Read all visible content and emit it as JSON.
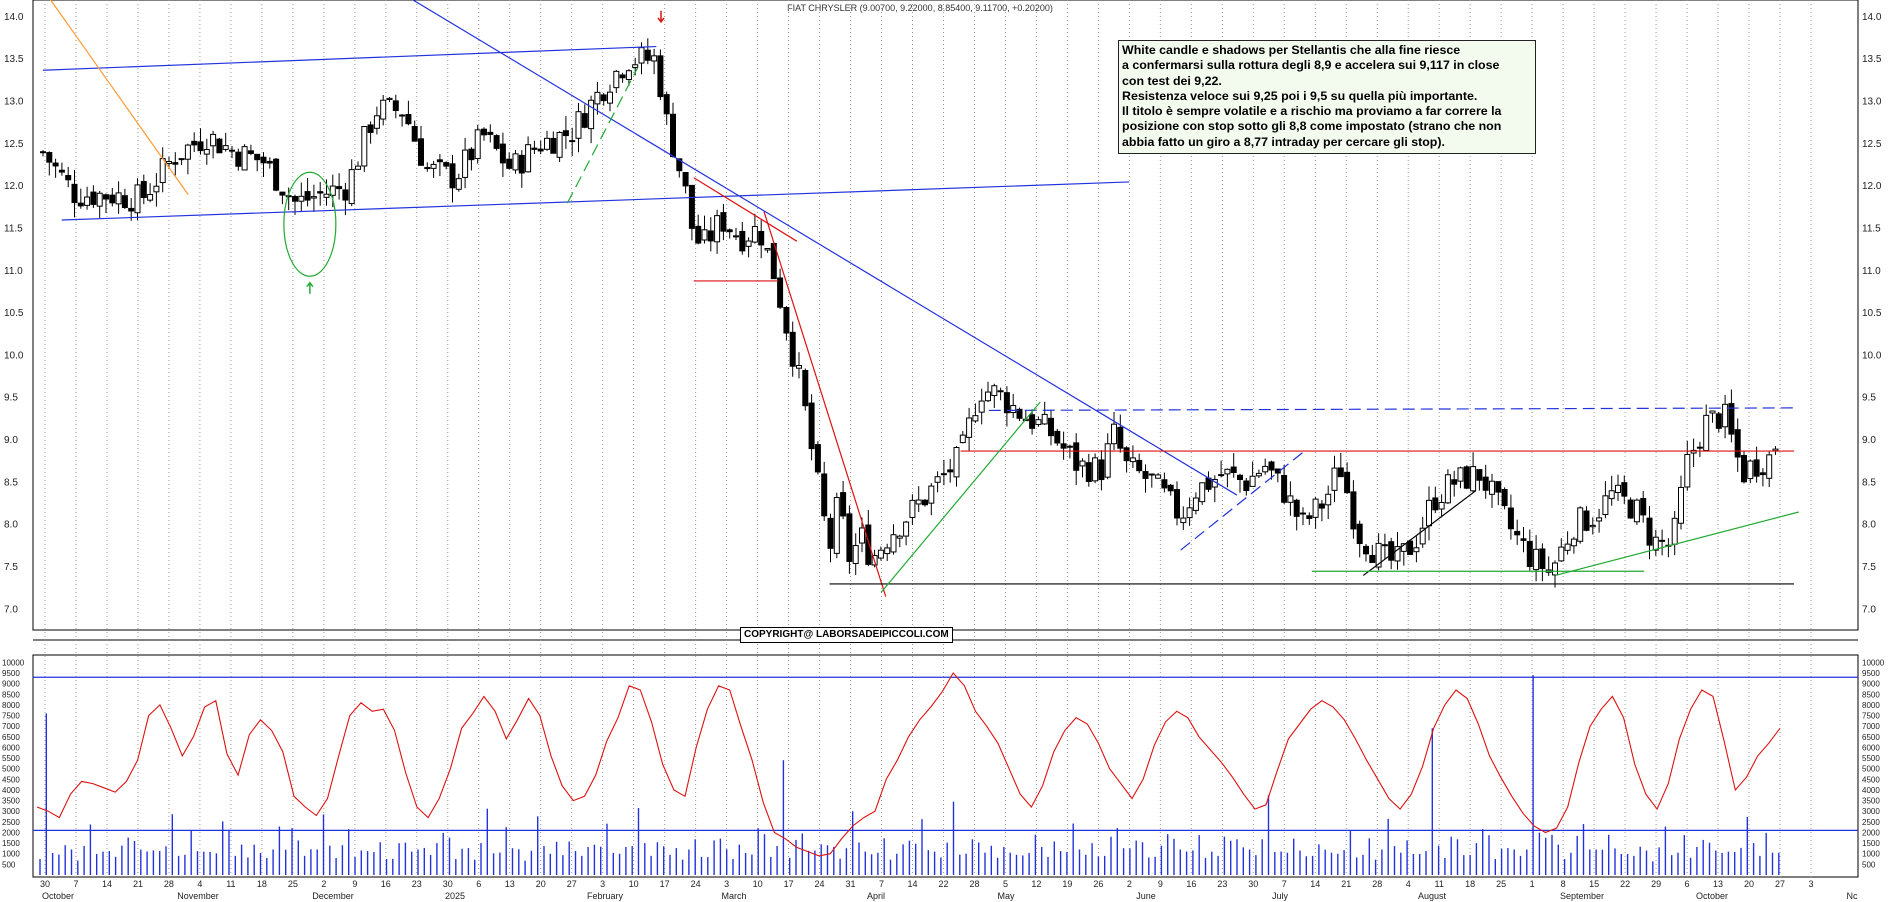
{
  "header": {
    "title": "FIAT CHRYSLER (9.00700, 9.22000, 8.85400, 9.11700, +0.20200)"
  },
  "annotation": {
    "lines": [
      "White candle e shadows per Stellantis che alla fine riesce",
      "a confermarsi sulla rottura degli 8,9 e accelera sui 9,117 in close",
      "con test dei 9,22.",
      "Resistenza veloce sui 9,25 poi i 9,5 su quella più importante.",
      "Il titolo è sempre volatile e a rischio ma proviamo a far correre la",
      "posizione con stop sotto gli 8,8 come impostato (strano che non",
      "abbia fatto un giro a 8,77 intraday per cercare gli stop)."
    ]
  },
  "copyright": "COPYRIGHT@ LABORSADEIPICCOLI.COM",
  "colors": {
    "candle_up": "#ffffff",
    "candle_down": "#000000",
    "trend_blue": "#2233dd",
    "trend_red": "#dd1111",
    "trend_green": "#22aa33",
    "volume_bar": "#2233dd",
    "oscillator_line": "#dd1111",
    "orange_line": "#ff9933"
  },
  "chart_data": [
    {
      "type": "candlestick",
      "title": "FIAT CHRYSLER (9.00700, 9.22000, 8.85400, 9.11700, +0.20200)",
      "last_candle": {
        "open": 9.007,
        "high": 9.22,
        "low": 8.854,
        "close": 9.117,
        "change": 0.202
      },
      "y_ticks": [
        "7.0",
        "7.5",
        "8.0",
        "8.5",
        "9.0",
        "9.5",
        "10.0",
        "10.5",
        "11.0",
        "11.5",
        "12.0",
        "12.5",
        "13.0",
        "13.5",
        "14.0"
      ],
      "ylim": [
        6.85,
        14.2
      ],
      "x_day_ticks": [
        "30",
        "7",
        "14",
        "21",
        "28",
        "4",
        "11",
        "18",
        "25",
        "2",
        "9",
        "16",
        "23",
        "30",
        "6",
        "13",
        "20",
        "27",
        "3",
        "10",
        "17",
        "24",
        "3",
        "10",
        "17",
        "24",
        "31",
        "7",
        "14",
        "22",
        "28",
        "5",
        "12",
        "19",
        "26",
        "2",
        "9",
        "16",
        "23",
        "30",
        "7",
        "14",
        "21",
        "28",
        "4",
        "11",
        "18",
        "25",
        "1",
        "8",
        "15",
        "22",
        "29",
        "6",
        "13",
        "20",
        "27",
        "3"
      ],
      "x_month_labels": [
        "October",
        "November",
        "December",
        "2025",
        "February",
        "March",
        "April",
        "May",
        "June",
        "July",
        "August",
        "September",
        "October",
        "Nc"
      ],
      "close_path": [
        [
          "2024-10-30",
          12.4
        ],
        [
          "2024-11-06",
          11.9
        ],
        [
          "2024-11-13",
          11.9
        ],
        [
          "2024-11-20",
          11.85
        ],
        [
          "2024-11-27",
          12.35
        ],
        [
          "2024-12-04",
          12.6
        ],
        [
          "2024-12-10",
          12.4
        ],
        [
          "2024-12-16",
          12.3
        ],
        [
          "2024-12-23",
          11.8
        ],
        [
          "2024-12-28",
          11.9
        ],
        [
          "2025-01-03",
          12.0
        ],
        [
          "2025-01-09",
          12.9
        ],
        [
          "2025-01-15",
          12.9
        ],
        [
          "2025-01-20",
          12.2
        ],
        [
          "2025-01-26",
          12.1
        ],
        [
          "2025-02-01",
          12.6
        ],
        [
          "2025-02-07",
          12.2
        ],
        [
          "2025-02-13",
          12.5
        ],
        [
          "2025-02-20",
          12.65
        ],
        [
          "2025-02-27",
          13.2
        ],
        [
          "2025-03-04",
          13.5
        ],
        [
          "2025-03-10",
          13.5
        ],
        [
          "2025-03-12",
          12.8
        ],
        [
          "2025-03-16",
          12.0
        ],
        [
          "2025-03-18",
          11.4
        ],
        [
          "2025-03-20",
          11.3
        ],
        [
          "2025-03-24",
          11.6
        ],
        [
          "2025-03-28",
          11.4
        ],
        [
          "2025-04-01",
          11.5
        ],
        [
          "2025-04-04",
          11.0
        ],
        [
          "2025-04-07",
          10.3
        ],
        [
          "2025-04-10",
          9.6
        ],
        [
          "2025-04-14",
          8.3
        ],
        [
          "2025-04-16",
          7.7
        ],
        [
          "2025-04-18",
          8.3
        ],
        [
          "2025-04-20",
          7.6
        ],
        [
          "2025-04-23",
          7.85
        ],
        [
          "2025-04-25",
          7.6
        ],
        [
          "2025-04-29",
          7.9
        ],
        [
          "2025-05-06",
          8.3
        ],
        [
          "2025-05-14",
          8.8
        ],
        [
          "2025-05-18",
          9.6
        ],
        [
          "2025-05-22",
          9.55
        ],
        [
          "2025-05-26",
          9.35
        ],
        [
          "2025-06-02",
          9.1
        ],
        [
          "2025-06-08",
          8.7
        ],
        [
          "2025-06-13",
          8.65
        ],
        [
          "2025-06-16",
          9.1
        ],
        [
          "2025-06-18",
          8.7
        ],
        [
          "2025-06-24",
          8.5
        ],
        [
          "2025-06-30",
          8.1
        ],
        [
          "2025-07-03",
          8.4
        ],
        [
          "2025-07-09",
          8.6
        ],
        [
          "2025-07-14",
          8.5
        ],
        [
          "2025-07-18",
          8.7
        ],
        [
          "2025-07-22",
          8.4
        ],
        [
          "2025-07-26",
          8.0
        ],
        [
          "2025-07-31",
          8.3
        ],
        [
          "2025-08-03",
          8.7
        ],
        [
          "2025-08-07",
          7.9
        ],
        [
          "2025-08-12",
          7.6
        ],
        [
          "2025-08-15",
          7.55
        ],
        [
          "2025-08-19",
          7.8
        ],
        [
          "2025-08-23",
          8.3
        ],
        [
          "2025-08-27",
          8.5
        ],
        [
          "2025-09-02",
          8.6
        ],
        [
          "2025-09-05",
          8.3
        ],
        [
          "2025-09-09",
          7.9
        ],
        [
          "2025-09-13",
          7.6
        ],
        [
          "2025-09-17",
          7.45
        ],
        [
          "2025-09-22",
          8.0
        ],
        [
          "2025-09-26",
          8.1
        ],
        [
          "2025-09-30",
          8.35
        ],
        [
          "2025-10-05",
          8.2
        ],
        [
          "2025-10-09",
          7.8
        ],
        [
          "2025-10-13",
          7.75
        ],
        [
          "2025-10-16",
          8.7
        ],
        [
          "2025-10-20",
          9.2
        ],
        [
          "2025-10-24",
          9.3
        ],
        [
          "2025-10-28",
          8.6
        ],
        [
          "2025-10-30",
          8.7
        ],
        [
          "2025-11-03",
          8.8
        ],
        [
          "2025-11-05",
          9.1
        ]
      ],
      "trendlines": [
        {
          "color": "blue",
          "style": "solid",
          "from": [
            "2024-10-30",
            13.37
          ],
          "to": [
            "2025-03-10",
            13.65
          ]
        },
        {
          "color": "blue",
          "style": "solid",
          "from": [
            "2024-11-03",
            11.6
          ],
          "to": [
            "2025-06-19",
            12.05
          ]
        },
        {
          "color": "blue",
          "style": "solid",
          "from": [
            "2025-01-05",
            14.6
          ],
          "to": [
            "2025-07-12",
            8.35
          ]
        },
        {
          "color": "blue",
          "style": "dashed",
          "from": [
            "2025-05-20",
            9.35
          ],
          "to": [
            "2025-11-08",
            9.38
          ]
        },
        {
          "color": "blue",
          "style": "dashed",
          "from": [
            "2025-06-30",
            7.7
          ],
          "to": [
            "2025-07-26",
            8.85
          ]
        },
        {
          "color": "red",
          "style": "solid",
          "from": [
            "2025-03-18",
            10.88
          ],
          "to": [
            "2025-04-05",
            10.88
          ]
        },
        {
          "color": "red",
          "style": "solid",
          "from": [
            "2025-03-18",
            12.1
          ],
          "to": [
            "2025-04-09",
            11.35
          ]
        },
        {
          "color": "red",
          "style": "solid",
          "from": [
            "2025-04-02",
            11.7
          ],
          "to": [
            "2025-04-28",
            7.15
          ]
        },
        {
          "color": "red",
          "style": "solid",
          "from": [
            "2025-05-14",
            8.87
          ],
          "to": [
            "2025-11-08",
            8.87
          ]
        },
        {
          "color": "black",
          "style": "solid",
          "from": [
            "2025-04-16",
            7.3
          ],
          "to": [
            "2025-11-08",
            7.3
          ]
        },
        {
          "color": "black",
          "style": "solid",
          "from": [
            "2025-08-08",
            7.4
          ],
          "to": [
            "2025-09-01",
            8.4
          ]
        },
        {
          "color": "green",
          "style": "solid",
          "from": [
            "2025-04-27",
            7.2
          ],
          "to": [
            "2025-05-31",
            9.45
          ]
        },
        {
          "color": "green",
          "style": "dashed",
          "from": [
            "2025-02-19",
            11.8
          ],
          "to": [
            "2025-03-06",
            13.4
          ]
        },
        {
          "color": "green",
          "style": "solid",
          "from": [
            "2025-07-28",
            7.45
          ],
          "to": [
            "2025-10-07",
            7.45
          ]
        },
        {
          "color": "green",
          "style": "solid",
          "from": [
            "2025-09-18",
            7.4
          ],
          "to": [
            "2025-11-09",
            8.15
          ]
        },
        {
          "color": "orange",
          "style": "solid",
          "from": [
            "2024-10-31",
            14.25
          ],
          "to": [
            "2024-11-30",
            11.9
          ]
        }
      ],
      "markers": [
        {
          "type": "down-arrow",
          "color": "red",
          "date": "2025-03-11",
          "y": 14.0
        },
        {
          "type": "up-arrow",
          "color": "green",
          "date": "2024-12-26",
          "y": 10.8
        },
        {
          "type": "ellipse",
          "color": "green",
          "date": "2024-12-26",
          "y": 11.55
        }
      ]
    },
    {
      "type": "bar",
      "title": "",
      "y_ticks": [
        "500",
        "1000",
        "1500",
        "2000",
        "2500",
        "3000",
        "3500",
        "4000",
        "4500",
        "5000",
        "5500",
        "6000",
        "6500",
        "7000",
        "7500",
        "8000",
        "8500",
        "9000",
        "9500",
        "10000"
      ],
      "ylim": [
        0,
        10300
      ],
      "reference_lines": [
        9300,
        2100
      ],
      "volume_pattern": [
        1000,
        1100,
        900,
        1200,
        1400,
        1000,
        800,
        1300,
        1900,
        1100,
        1000,
        1500,
        900,
        1200,
        2200,
        1600,
        1000,
        1300,
        1100,
        900,
        1500,
        2600,
        1200,
        1000,
        1800,
        1400,
        1100,
        900,
        1200,
        2400,
        1700,
        1000,
        1300,
        1100,
        1500,
        900,
        1000,
        1200,
        1900,
        1400,
        2100,
        1300,
        1000,
        1100,
        1600,
        3000,
        1200,
        1000,
        1400,
        1800
      ],
      "oscillator_line": [
        3200,
        3000,
        2700,
        3800,
        4400,
        4300,
        4100,
        3900,
        4400,
        5400,
        7500,
        8000,
        6900,
        5600,
        6500,
        7900,
        8200,
        5700,
        4700,
        6600,
        7300,
        6800,
        5800,
        3700,
        3200,
        2800,
        3600,
        5600,
        7500,
        8100,
        7700,
        7800,
        6800,
        4800,
        3200,
        2700,
        3600,
        5000,
        6900,
        7600,
        8400,
        7700,
        6400,
        7300,
        8300,
        7500,
        5600,
        4200,
        3500,
        3700,
        4700,
        6300,
        7400,
        8900,
        8700,
        7200,
        5200,
        4000,
        3700,
        6000,
        7800,
        8900,
        8700,
        7000,
        5400,
        3400,
        2000,
        1700,
        1300,
        1100,
        900,
        1000,
        1700,
        2300,
        2700,
        3000,
        4500,
        5400,
        6500,
        7300,
        7900,
        8600,
        9500,
        8900,
        7700,
        7000,
        6200,
        5000,
        3800,
        3200,
        4200,
        5800,
        6800,
        7400,
        7100,
        6200,
        5000,
        4300,
        3600,
        4500,
        6100,
        7200,
        7700,
        7400,
        6500,
        5900,
        5300,
        4600,
        3800,
        3100,
        3300,
        4900,
        6400,
        7100,
        7800,
        8200,
        7900,
        7300,
        6400,
        5400,
        4500,
        3600,
        3100,
        3800,
        5100,
        6900,
        8000,
        8700,
        8300,
        7100,
        5600,
        4600,
        3700,
        2900,
        2300,
        2000,
        2200,
        3200,
        5300,
        7000,
        7800,
        8400,
        7400,
        5200,
        3800,
        3100,
        4300,
        6400,
        7800,
        8700,
        8400,
        6300,
        4000,
        4600,
        5600,
        6200,
        6900
      ]
    }
  ]
}
